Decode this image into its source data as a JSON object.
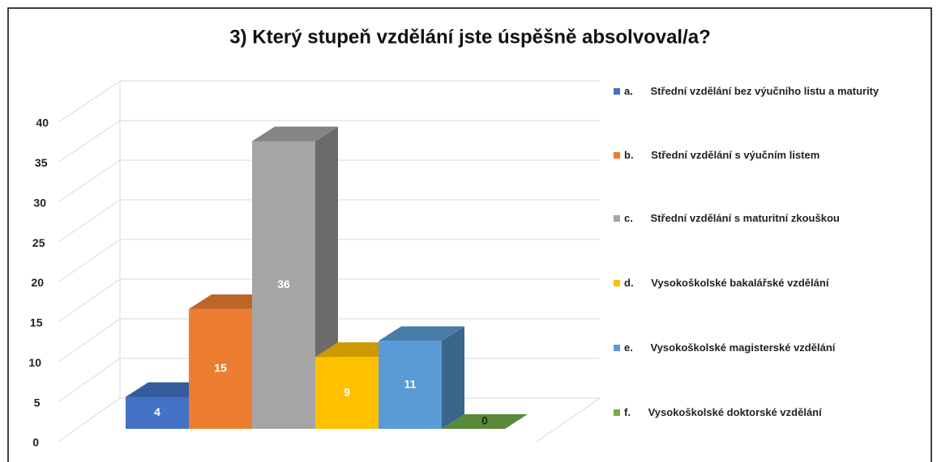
{
  "chart_data": {
    "type": "bar3d",
    "title": "3) Který stupeň vzdělání jste úspěšně absolvoval/a?",
    "categories": [
      "a.      Střední vzdělání bez výučního listu a maturity",
      "b.      Střední vzdělání s výučním listem",
      "c.      Střední vzdělání s maturitní zkouškou",
      "d.      Vysokoškolské bakalářské vzdělání",
      "e.      Vysokoškolské magisterské vzdělání",
      "f.      Vysokoškolské doktorské vzdělání"
    ],
    "values": [
      4,
      15,
      36,
      9,
      11,
      0
    ],
    "colors": [
      "#4472c4",
      "#ed7d31",
      "#a5a5a5",
      "#ffc000",
      "#5b9bd5",
      "#70ad47"
    ],
    "ylim": [
      0,
      40
    ],
    "yticks": [
      0,
      5,
      10,
      15,
      20,
      25,
      30,
      35,
      40
    ],
    "grid": true,
    "legend": "right"
  }
}
